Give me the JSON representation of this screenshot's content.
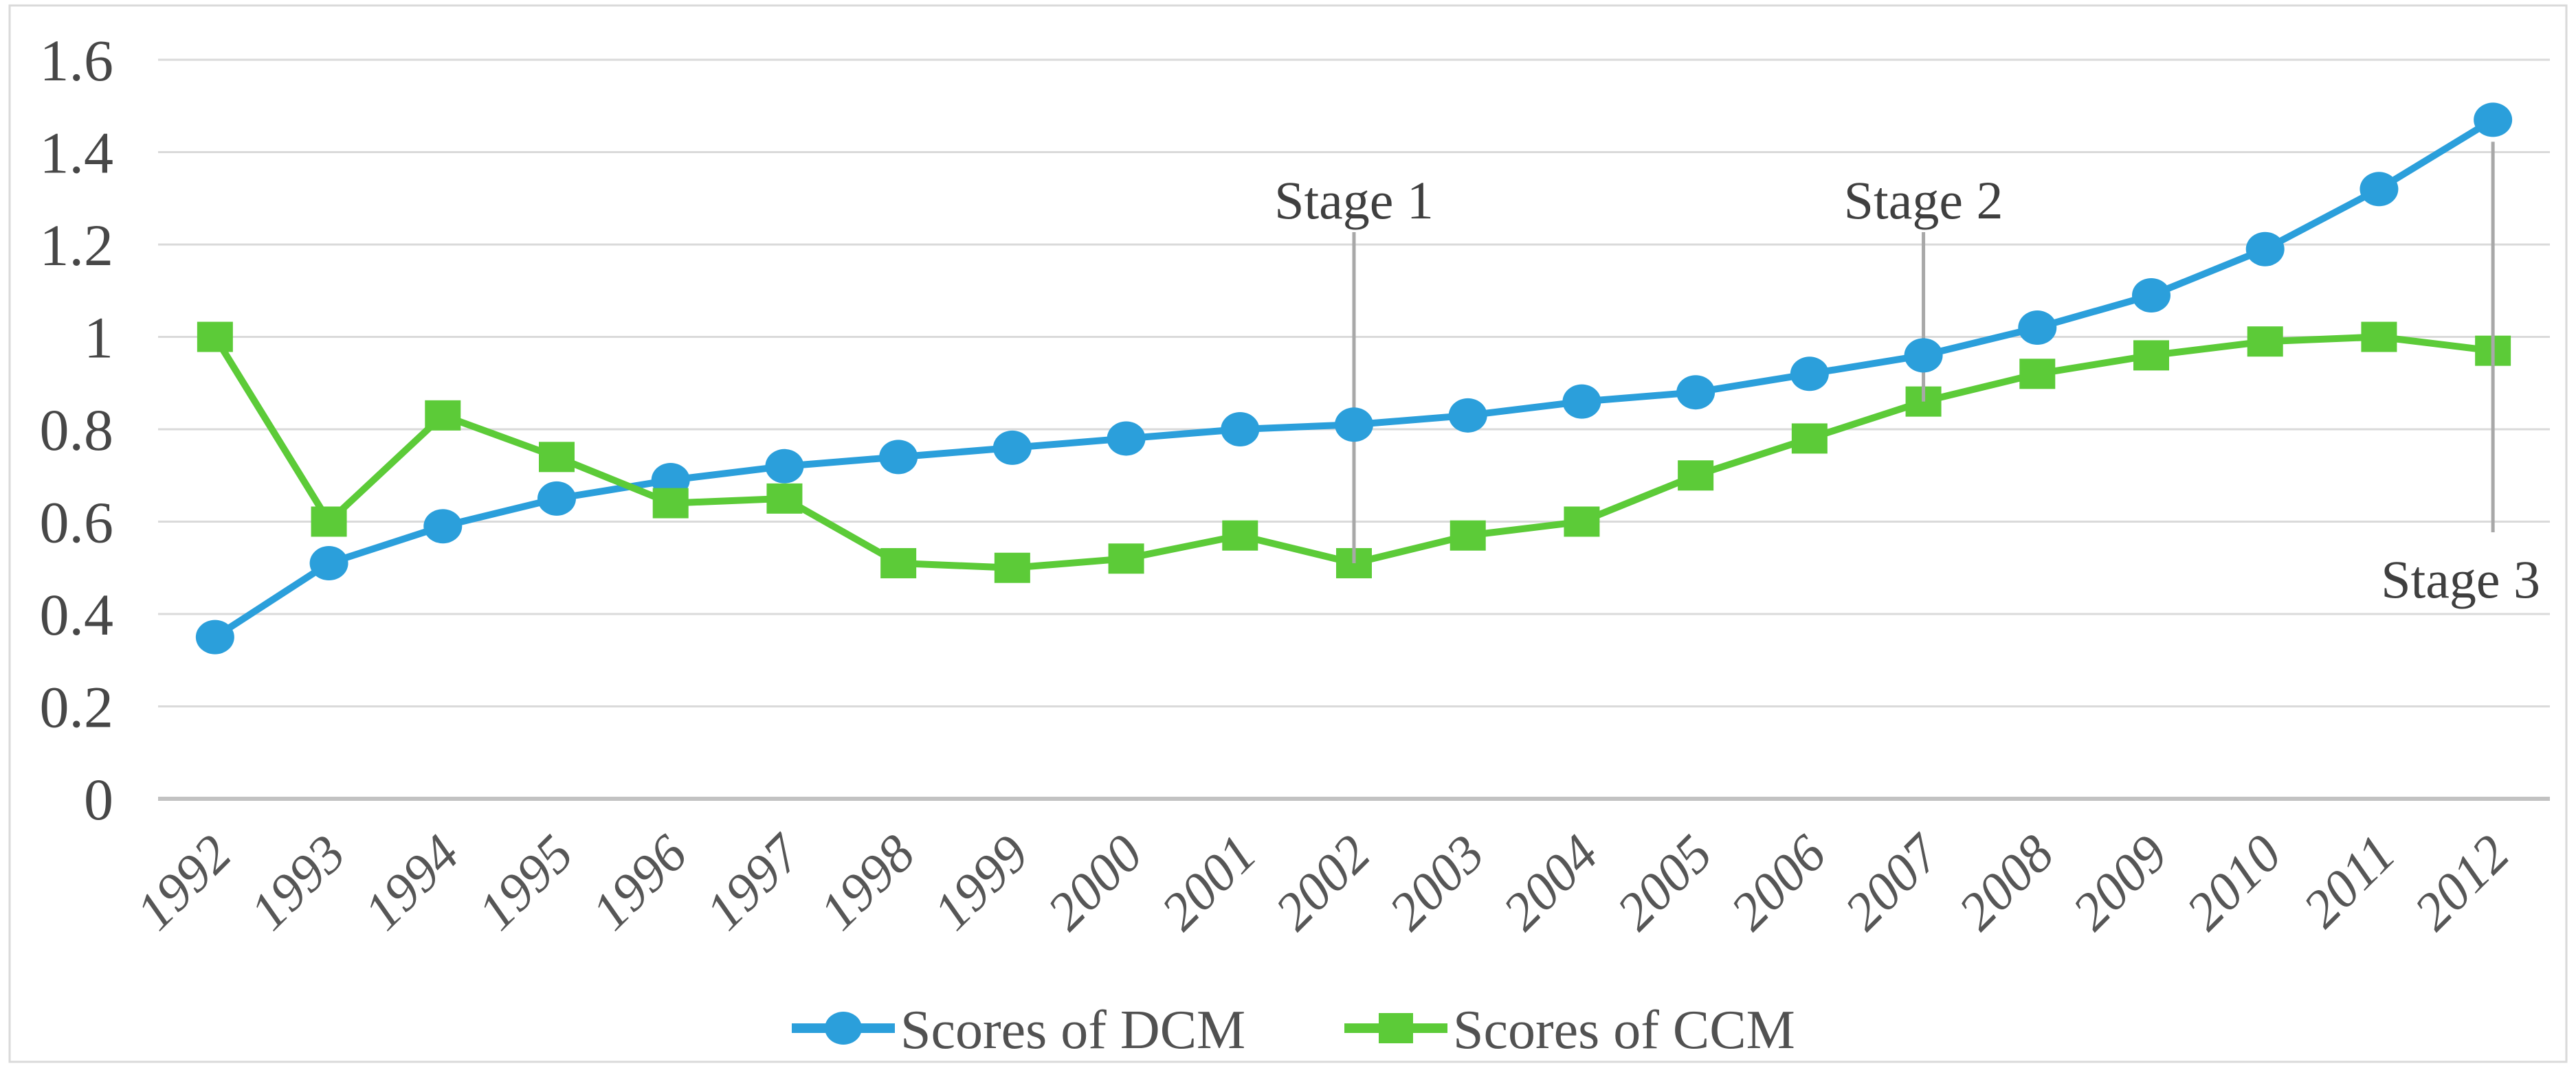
{
  "chart_data": {
    "type": "line",
    "title": "",
    "xlabel": "",
    "ylabel": "",
    "categories": [
      "1992",
      "1993",
      "1994",
      "1995",
      "1996",
      "1997",
      "1998",
      "1999",
      "2000",
      "2001",
      "2002",
      "2003",
      "2004",
      "2005",
      "2006",
      "2007",
      "2008",
      "2009",
      "2010",
      "2011",
      "2012"
    ],
    "series": [
      {
        "name": "Scores of DCM",
        "marker": "circle",
        "color": "#2B9FDB",
        "values": [
          0.35,
          0.51,
          0.59,
          0.65,
          0.69,
          0.72,
          0.74,
          0.76,
          0.78,
          0.8,
          0.81,
          0.83,
          0.86,
          0.88,
          0.92,
          0.96,
          1.02,
          1.09,
          1.19,
          1.32,
          1.47
        ]
      },
      {
        "name": "Scores of CCM",
        "marker": "square",
        "color": "#5CCB38",
        "values": [
          1.0,
          0.6,
          0.83,
          0.74,
          0.64,
          0.65,
          0.51,
          0.5,
          0.52,
          0.57,
          0.51,
          0.57,
          0.6,
          0.7,
          0.78,
          0.86,
          0.92,
          0.96,
          0.99,
          1.0,
          0.97
        ]
      }
    ],
    "ylim": [
      0,
      1.6
    ],
    "ytick_step": 0.2,
    "ytick_labels": [
      "0",
      "0.2",
      "0.4",
      "0.6",
      "0.8",
      "1",
      "1.2",
      "1.4",
      "1.6"
    ],
    "grid": true,
    "legend_position": "bottom-center",
    "annotations": [
      {
        "label": "Stage 1",
        "year": "2002",
        "line_to": "ccm",
        "placement": "above"
      },
      {
        "label": "Stage 2",
        "year": "2007",
        "line_to": "ccm",
        "placement": "above"
      },
      {
        "label": "Stage 3",
        "year": "2012",
        "line_to": "dcm",
        "placement": "below"
      }
    ]
  },
  "colors": {
    "dcm": "#2B9FDB",
    "ccm": "#5CCB38",
    "gridline": "#DADADA",
    "axis_line": "#C2C2C2",
    "tick_text": "#474747",
    "year_text": "#565656",
    "stage_text": "#3F3F3F",
    "stage_line": "#A8A8A8",
    "legend_text": "#515151",
    "figure_border": "#DADADA",
    "background": "#FFFFFF"
  }
}
